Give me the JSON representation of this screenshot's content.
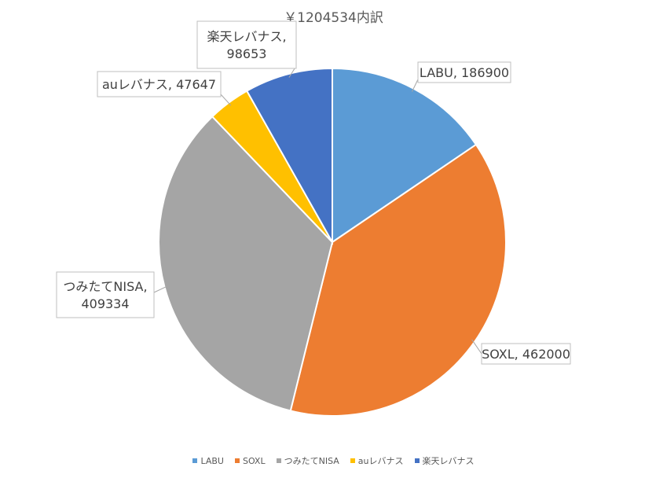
{
  "chart_data": {
    "type": "pie",
    "title": "￥1204534内訳",
    "categories": [
      "LABU",
      "SOXL",
      "つみたてNISA",
      "auレバナス",
      "楽天レバナス"
    ],
    "values": [
      186900,
      462000,
      409334,
      47647,
      98653
    ],
    "colors": [
      "#5B9BD5",
      "#ED7D31",
      "#A5A5A5",
      "#FFC000",
      "#4472C4"
    ],
    "data_labels": [
      [
        "LABU, 186900"
      ],
      [
        "SOXL, 462000"
      ],
      [
        "つみたてNISA,",
        "409334"
      ],
      [
        "auレバナス, 47647"
      ],
      [
        "楽天レバナス,",
        "98653"
      ]
    ],
    "legend_position": "bottom"
  }
}
